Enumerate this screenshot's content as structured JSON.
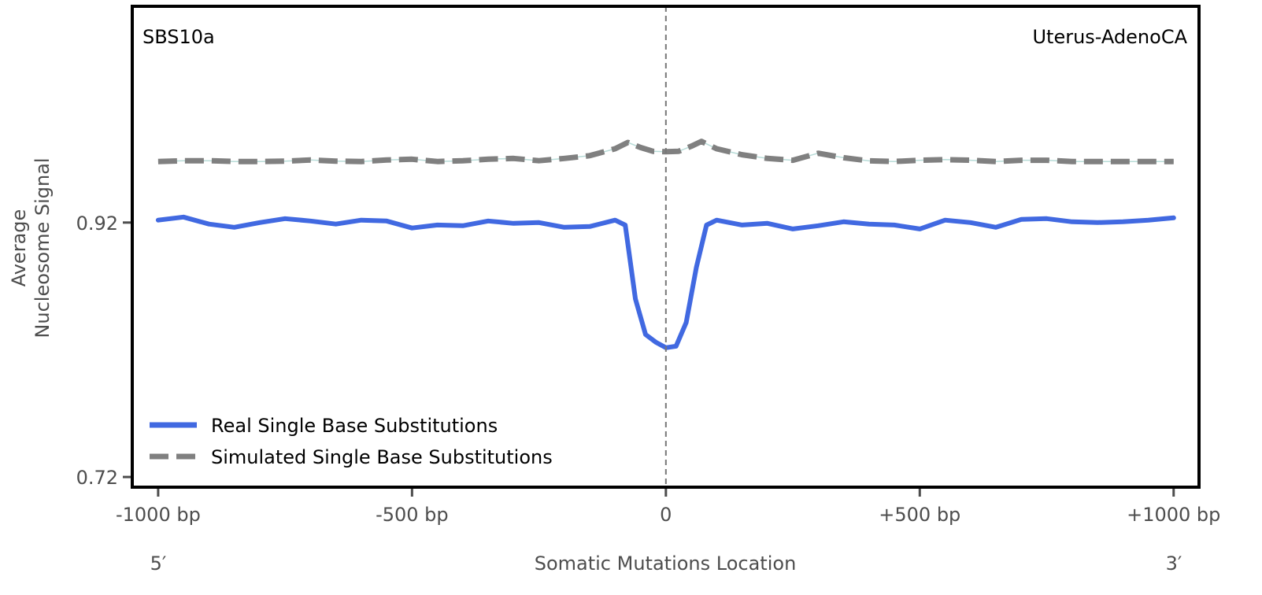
{
  "chart_data": {
    "type": "line",
    "signature_label": "SBS10a",
    "cancer_type_label": "Uterus-AdenoCA",
    "xlabel": "Somatic Mutations Location",
    "ylabel_lines": [
      "Average",
      "Nucleosome Signal"
    ],
    "end_labels": {
      "left": "5′",
      "right": "3′"
    },
    "xlim": [
      -1051,
      1050
    ],
    "ylim": [
      0.712,
      1.09
    ],
    "xticks": [
      {
        "value": -1000,
        "label": "-1000 bp"
      },
      {
        "value": -500,
        "label": "-500 bp"
      },
      {
        "value": 0,
        "label": "0"
      },
      {
        "value": 500,
        "label": "+500 bp"
      },
      {
        "value": 1000,
        "label": "+1000 bp"
      }
    ],
    "yticks": [
      {
        "value": 0.92,
        "label": "0.92"
      },
      {
        "value": 0.72,
        "label": "0.72"
      }
    ],
    "vline_x": 0,
    "legend_position": "lower-left",
    "series": [
      {
        "name": "Real Single Base Substitutions",
        "color": "#4169e1",
        "style": "solid",
        "x": [
          -1000,
          -950,
          -900,
          -850,
          -800,
          -750,
          -700,
          -650,
          -600,
          -550,
          -500,
          -450,
          -400,
          -350,
          -300,
          -250,
          -200,
          -150,
          -100,
          -80,
          -60,
          -40,
          -20,
          0,
          20,
          40,
          60,
          80,
          100,
          150,
          200,
          250,
          300,
          350,
          400,
          450,
          500,
          550,
          600,
          650,
          700,
          750,
          800,
          850,
          900,
          950,
          1000
        ],
        "y": [
          0.9219,
          0.9243,
          0.9188,
          0.9163,
          0.92,
          0.9231,
          0.9212,
          0.9188,
          0.9219,
          0.9212,
          0.9157,
          0.9181,
          0.9175,
          0.9212,
          0.9194,
          0.92,
          0.9163,
          0.9169,
          0.9219,
          0.918,
          0.86,
          0.832,
          0.826,
          0.8216,
          0.8228,
          0.8414,
          0.8847,
          0.918,
          0.9219,
          0.9181,
          0.9194,
          0.915,
          0.9175,
          0.9206,
          0.9188,
          0.9181,
          0.915,
          0.9219,
          0.92,
          0.9163,
          0.9225,
          0.9231,
          0.9206,
          0.92,
          0.9206,
          0.9219,
          0.9237
        ]
      },
      {
        "name": "Simulated Single Base Substitutions",
        "color": "#808080",
        "style": "dashed",
        "x": [
          -1000,
          -950,
          -900,
          -850,
          -800,
          -750,
          -700,
          -650,
          -600,
          -550,
          -500,
          -450,
          -400,
          -350,
          -300,
          -250,
          -200,
          -150,
          -100,
          -75,
          -50,
          -25,
          0,
          25,
          50,
          70,
          100,
          150,
          200,
          250,
          300,
          350,
          400,
          450,
          500,
          550,
          600,
          650,
          700,
          750,
          800,
          850,
          900,
          950,
          1000
        ],
        "y": [
          0.968,
          0.9686,
          0.9686,
          0.968,
          0.968,
          0.9683,
          0.9692,
          0.9683,
          0.968,
          0.9692,
          0.9698,
          0.968,
          0.9686,
          0.9698,
          0.9704,
          0.9686,
          0.9704,
          0.9726,
          0.978,
          0.983,
          0.979,
          0.976,
          0.9757,
          0.976,
          0.98,
          0.9838,
          0.978,
          0.9733,
          0.9704,
          0.969,
          0.9745,
          0.971,
          0.9685,
          0.968,
          0.969,
          0.9695,
          0.969,
          0.968,
          0.969,
          0.969,
          0.968,
          0.968,
          0.968,
          0.968,
          0.968
        ]
      }
    ]
  }
}
